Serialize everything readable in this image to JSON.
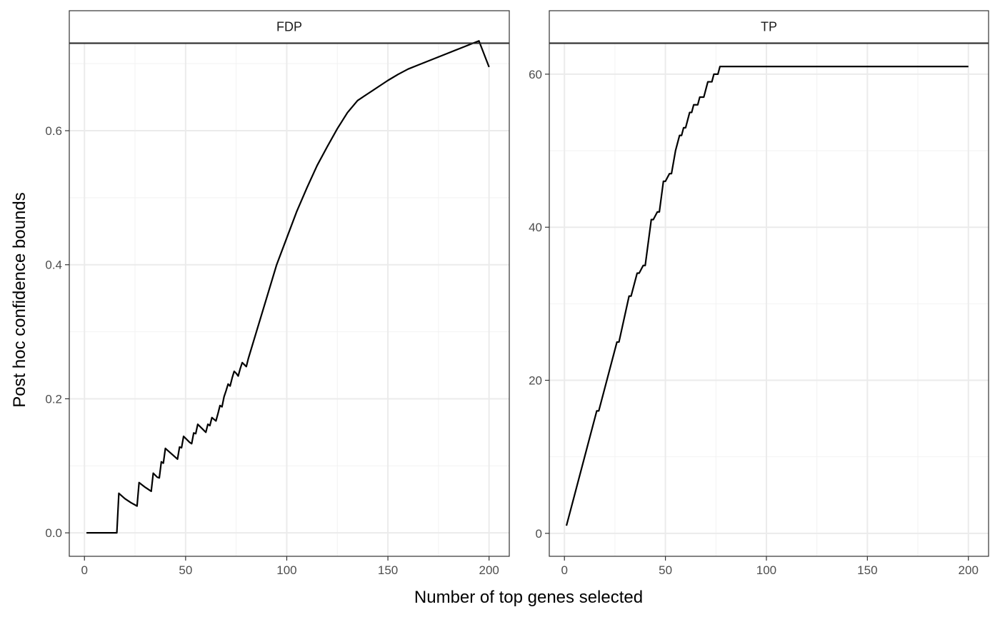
{
  "chart_data": {
    "type": "line",
    "xlabel": "Number of top genes selected",
    "ylabel": "Post hoc confidence bounds",
    "grid": true,
    "legend": "none",
    "colors": {
      "line": "#000000",
      "strip_fill": "#ffffff",
      "strip_border": "#333333",
      "grid_major": "#ebebeb",
      "grid_minor": "#f2f2f2",
      "panel_border": "#333333"
    },
    "panels": [
      {
        "title": "FDP",
        "xlim": [
          -7.5,
          210
        ],
        "ylim": [
          -0.035,
          0.73
        ],
        "x_ticks": [
          0,
          50,
          100,
          150,
          200
        ],
        "x_tick_labels": [
          "0",
          "50",
          "100",
          "150",
          "200"
        ],
        "y_ticks": [
          0.0,
          0.2,
          0.4,
          0.6
        ],
        "y_tick_labels": [
          "0.0",
          "0.2",
          "0.4",
          "0.6"
        ],
        "x": [
          1,
          16,
          17,
          20,
          23,
          26,
          27,
          30,
          33,
          34,
          36,
          37,
          38,
          39,
          40,
          43,
          46,
          47,
          48,
          49,
          52,
          53,
          54,
          55,
          56,
          59,
          60,
          61,
          62,
          63,
          65,
          66,
          67,
          68,
          69,
          70,
          71,
          72,
          73,
          74,
          75,
          76,
          77,
          78,
          79,
          80,
          81,
          85,
          90,
          95,
          100,
          105,
          110,
          115,
          120,
          125,
          130,
          135,
          140,
          145,
          150,
          155,
          160,
          165,
          170,
          175,
          180,
          185,
          190,
          195,
          200
        ],
        "y": [
          0.0,
          0.0,
          0.059,
          0.051,
          0.045,
          0.04,
          0.075,
          0.068,
          0.062,
          0.089,
          0.083,
          0.082,
          0.106,
          0.104,
          0.126,
          0.118,
          0.11,
          0.128,
          0.127,
          0.144,
          0.135,
          0.133,
          0.149,
          0.148,
          0.162,
          0.153,
          0.15,
          0.162,
          0.16,
          0.172,
          0.167,
          0.178,
          0.19,
          0.188,
          0.203,
          0.212,
          0.222,
          0.219,
          0.231,
          0.241,
          0.238,
          0.234,
          0.245,
          0.254,
          0.251,
          0.248,
          0.26,
          0.3,
          0.35,
          0.4,
          0.44,
          0.48,
          0.515,
          0.548,
          0.576,
          0.603,
          0.627,
          0.645,
          0.655,
          0.665,
          0.675,
          0.684,
          0.692,
          0.698,
          0.704,
          0.71,
          0.716,
          0.722,
          0.728,
          0.734,
          0.695
        ]
      },
      {
        "title": "TP",
        "xlim": [
          -7.5,
          210
        ],
        "ylim": [
          -3,
          64
        ],
        "x_ticks": [
          0,
          50,
          100,
          150,
          200
        ],
        "x_tick_labels": [
          "0",
          "50",
          "100",
          "150",
          "200"
        ],
        "y_ticks": [
          0,
          20,
          40,
          60
        ],
        "y_tick_labels": [
          "0",
          "20",
          "40",
          "60"
        ],
        "x": [
          1,
          16,
          17,
          26,
          27,
          32,
          33,
          36,
          37,
          39,
          40,
          43,
          44,
          46,
          47,
          49,
          50,
          52,
          53,
          55,
          56,
          57,
          58,
          59,
          60,
          61,
          62,
          63,
          64,
          65,
          66,
          67,
          68,
          69,
          70,
          71,
          72,
          73,
          74,
          75,
          76,
          77,
          78,
          79,
          80,
          81,
          200
        ],
        "y": [
          1,
          16,
          16,
          25,
          25,
          31,
          31,
          34,
          34,
          35,
          35,
          41,
          41,
          42,
          42,
          46,
          46,
          47,
          47,
          50,
          51,
          52,
          52,
          53,
          53,
          54,
          55,
          55,
          56,
          56,
          56,
          57,
          57,
          57,
          58,
          59,
          59,
          59,
          60,
          60,
          60,
          61,
          61,
          61,
          61,
          61,
          61
        ]
      }
    ]
  }
}
